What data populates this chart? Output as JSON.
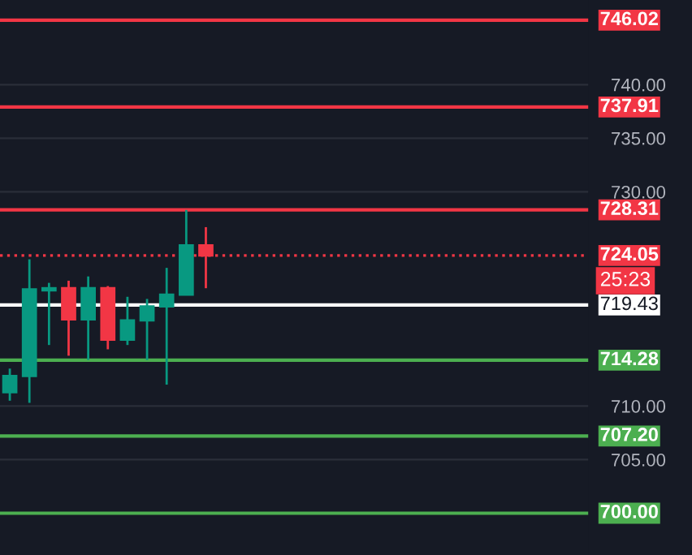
{
  "chart_data": {
    "type": "candlestick",
    "categories": [
      null,
      null,
      null,
      null,
      null,
      null,
      null,
      null,
      null,
      null,
      null,
      null,
      null,
      null,
      null,
      null,
      null,
      null,
      null,
      null,
      null,
      null,
      null,
      null,
      null,
      null,
      null,
      null,
      null,
      null
    ],
    "ohlc": [
      [
        711.3,
        713.5,
        710.5,
        712.8
      ],
      [
        712.8,
        723.7,
        710.3,
        720.9
      ],
      [
        720.8,
        721.5,
        715.7,
        721.0
      ],
      [
        721.0,
        721.7,
        714.7,
        718.1
      ],
      [
        718.1,
        722.1,
        714.3,
        721.0
      ],
      [
        721.0,
        721.2,
        715.3,
        716.2
      ],
      [
        716.2,
        720.2,
        715.7,
        718.0
      ],
      [
        718.0,
        720.0,
        714.3,
        719.3
      ],
      [
        719.3,
        722.9,
        712.0,
        720.4
      ],
      [
        720.4,
        728.3,
        720.4,
        725.0
      ],
      [
        725.0,
        726.7,
        721.0,
        724.05
      ],
      null,
      null,
      null,
      null,
      null,
      null,
      null,
      null,
      null,
      null,
      null,
      null,
      null,
      null,
      null,
      null,
      null,
      null,
      null
    ],
    "colors": [
      "#089981",
      "#089981",
      "#089981",
      "#f23645",
      "#089981",
      "#f23645",
      "#089981",
      "#089981",
      "#089981",
      "#089981",
      "#f23645",
      null,
      null,
      null,
      null,
      null,
      null,
      null,
      null,
      null,
      null,
      null,
      null,
      null,
      null,
      null,
      null,
      null,
      null,
      null
    ],
    "ylim": [
      696.1,
      747.9
    ],
    "yticks": [
      {
        "value": 705,
        "label": "705.00"
      },
      {
        "value": 710,
        "label": "710.00"
      },
      {
        "value": 730,
        "label": "730.00"
      },
      {
        "value": 735,
        "label": "735.00"
      },
      {
        "value": 740,
        "label": "740.00"
      }
    ],
    "grid": "y",
    "tick_labels": "y",
    "ref_lines": [
      {
        "axis": "y",
        "value": 746.02,
        "label": "746.02",
        "color": "#f23645",
        "line_style": "solid"
      },
      {
        "axis": "y",
        "value": 737.91,
        "label": "737.91",
        "color": "#f23645",
        "line_style": "solid"
      },
      {
        "axis": "y",
        "value": 728.31,
        "label": "728.31",
        "color": "#f23645",
        "line_style": "solid"
      },
      {
        "axis": "y",
        "value": 724.05,
        "label": "724.05",
        "color": "#f23645",
        "line_style": "dotted"
      },
      {
        "axis": "y",
        "value": 719.43,
        "label": "719.43",
        "color": "#ffffff",
        "line_style": "solid"
      },
      {
        "axis": "y",
        "value": 714.28,
        "label": "714.28",
        "color": "#4caf50",
        "line_style": "solid"
      },
      {
        "axis": "y",
        "value": 707.2,
        "label": "707.20",
        "color": "#4caf50",
        "line_style": "solid"
      },
      {
        "axis": "y",
        "value": 700.0,
        "label": "700.00",
        "color": "#4caf50",
        "line_style": "solid"
      }
    ],
    "annotations": [
      "25:23"
    ]
  }
}
